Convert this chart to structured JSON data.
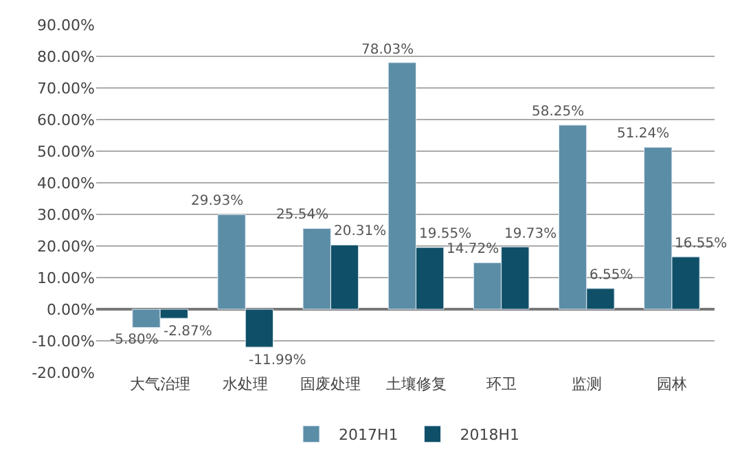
{
  "chart_data": {
    "type": "bar",
    "categories": [
      "大气治理",
      "水处理",
      "固废处理",
      "土壤修复",
      "环卫",
      "监测",
      "园林"
    ],
    "series": [
      {
        "name": "2017H1",
        "color": "#5b8ea6",
        "values": [
          -5.8,
          29.93,
          25.54,
          78.03,
          14.72,
          58.25,
          51.24
        ],
        "value_labels": [
          "-5.80%",
          "29.93%",
          "25.54%",
          "78.03%",
          "14.72%",
          "58.25%",
          "51.24%"
        ]
      },
      {
        "name": "2018H1",
        "color": "#0f5068",
        "values": [
          -2.87,
          -11.99,
          20.31,
          19.55,
          19.73,
          6.55,
          16.55
        ],
        "value_labels": [
          "-2.87%",
          "-11.99%",
          "20.31%",
          "19.55%",
          "19.73%",
          "6.55%",
          "16.55%"
        ]
      }
    ],
    "ylim": [
      -20,
      90
    ],
    "yticks": [
      {
        "value": -20,
        "label": "-20.00%"
      },
      {
        "value": -10,
        "label": "-10.00%"
      },
      {
        "value": 0,
        "label": "0.00%"
      },
      {
        "value": 10,
        "label": "10.00%"
      },
      {
        "value": 20,
        "label": "20.00%"
      },
      {
        "value": 30,
        "label": "30.00%"
      },
      {
        "value": 40,
        "label": "40.00%"
      },
      {
        "value": 50,
        "label": "50.00%"
      },
      {
        "value": 60,
        "label": "60.00%"
      },
      {
        "value": 70,
        "label": "70.00%"
      },
      {
        "value": 80,
        "label": "80.00%"
      },
      {
        "value": 90,
        "label": "90.00%"
      }
    ],
    "grid": "y",
    "legend": "bottom"
  }
}
